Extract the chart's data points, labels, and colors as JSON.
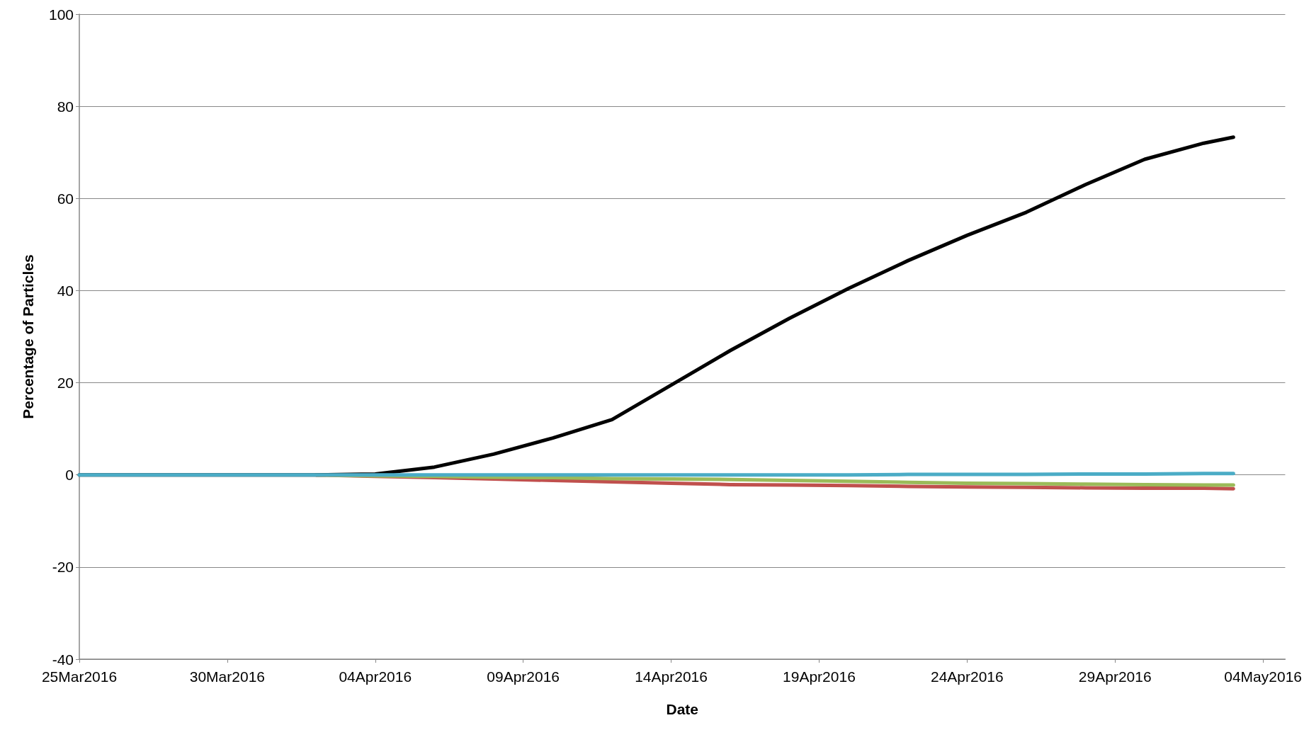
{
  "chart_data": {
    "type": "line",
    "xlabel": "Date",
    "ylabel": "Percentage of Particles",
    "x": [
      "2016-03-25",
      "2016-03-27",
      "2016-03-29",
      "2016-03-31",
      "2016-04-02",
      "2016-04-04",
      "2016-04-06",
      "2016-04-08",
      "2016-04-10",
      "2016-04-12",
      "2016-04-14",
      "2016-04-16",
      "2016-04-18",
      "2016-04-20",
      "2016-04-22",
      "2016-04-24",
      "2016-04-26",
      "2016-04-28",
      "2016-04-30",
      "2016-05-02",
      "2016-05-03"
    ],
    "series": [
      {
        "color": "#c0504d",
        "values": [
          null,
          null,
          null,
          null,
          0,
          -0.3,
          -0.6,
          -0.9,
          -1.2,
          -1.5,
          -1.8,
          -2.1,
          -2.2,
          -2.3,
          -2.5,
          -2.6,
          -2.7,
          -2.8,
          -2.9,
          -2.9,
          -3
        ]
      },
      {
        "color": "#9bbb59",
        "values": [
          null,
          null,
          null,
          null,
          0,
          -0.2,
          -0.3,
          -0.5,
          -0.6,
          -0.8,
          -0.9,
          -1,
          -1.2,
          -1.4,
          -1.6,
          -1.8,
          -1.9,
          -2,
          -2.1,
          -2.2,
          -2.2
        ]
      },
      {
        "color": "#000000",
        "values": [
          0,
          0,
          0,
          0,
          0,
          0.2,
          1.7,
          4.5,
          8,
          12,
          19.5,
          27,
          34,
          40.5,
          46.5,
          52,
          57,
          63,
          68.5,
          72,
          73.3
        ]
      },
      {
        "color": "#4bacc6",
        "values": [
          0,
          0,
          0,
          0,
          0,
          0,
          0,
          0,
          0,
          0,
          0,
          0,
          0,
          0,
          0.1,
          0.1,
          0.1,
          0.2,
          0.2,
          0.3,
          0.3
        ]
      }
    ],
    "xlim": [
      "2016-03-25",
      "2016-05-04T18:00"
    ],
    "xticks": [
      {
        "value": "2016-03-25",
        "label": "25Mar2016"
      },
      {
        "value": "2016-03-30",
        "label": "30Mar2016"
      },
      {
        "value": "2016-04-04",
        "label": "04Apr2016"
      },
      {
        "value": "2016-04-09",
        "label": "09Apr2016"
      },
      {
        "value": "2016-04-14",
        "label": "14Apr2016"
      },
      {
        "value": "2016-04-19",
        "label": "19Apr2016"
      },
      {
        "value": "2016-04-24",
        "label": "24Apr2016"
      },
      {
        "value": "2016-04-29",
        "label": "29Apr2016"
      },
      {
        "value": "2016-05-04",
        "label": "04May2016"
      }
    ],
    "ylim": [
      -40,
      100
    ],
    "yticks": [
      -40,
      -20,
      0,
      20,
      40,
      60,
      80,
      100
    ],
    "grid": "y",
    "marker": "none",
    "line_style": "solid"
  }
}
